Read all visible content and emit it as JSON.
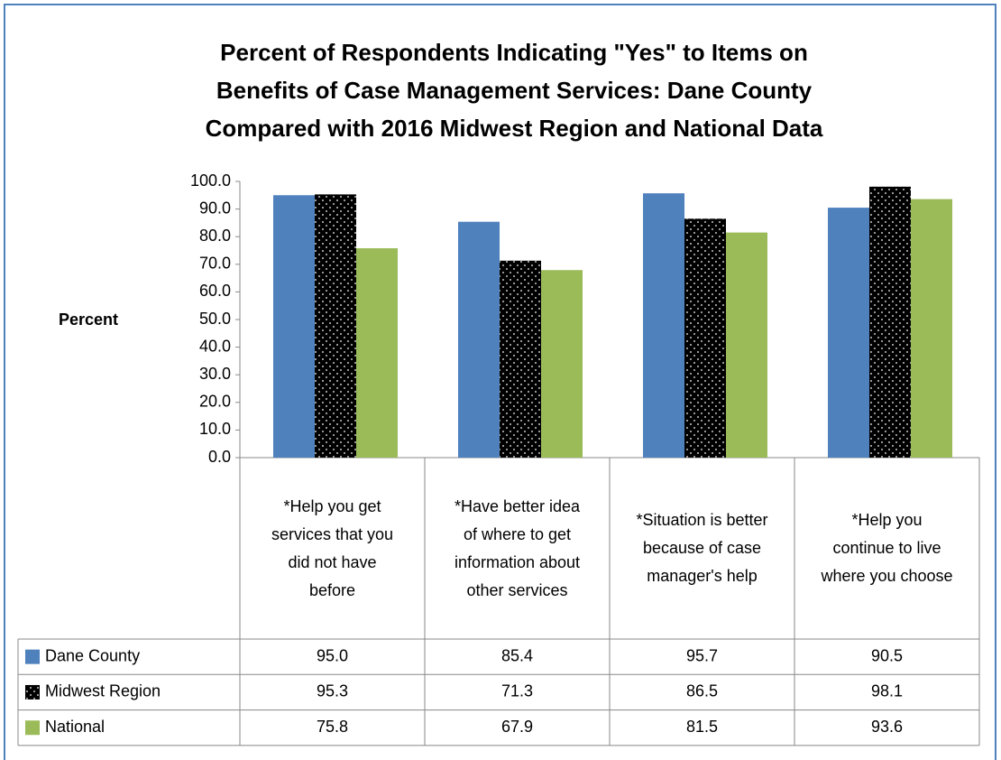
{
  "chart_data": {
    "type": "bar",
    "title": [
      "Percent of Respondents Indicating \"Yes\" to Items on",
      "Benefits of Case Management Services:  Dane County",
      "Compared with 2016 Midwest Region and National Data"
    ],
    "y_label": "Percent",
    "categories": [
      "*Help you get services that you did not have before",
      "*Have better idea of where to get information about other services",
      "*Situation is better because of case manager's help",
      "*Help you continue to live where you choose"
    ],
    "series": [
      {
        "name": "Dane County",
        "color": "#4f81bd",
        "values": [
          95.0,
          85.4,
          95.7,
          90.5
        ],
        "value_labels": [
          "95.0",
          "85.4",
          "95.7",
          "90.5"
        ]
      },
      {
        "name": "Midwest Region",
        "color": "#c00000",
        "pattern": "dots",
        "values": [
          95.3,
          71.3,
          86.5,
          98.1
        ],
        "value_labels": [
          "95.3",
          "71.3",
          "86.5",
          "98.1"
        ]
      },
      {
        "name": "National",
        "color": "#9bbb59",
        "values": [
          75.8,
          67.9,
          81.5,
          93.6
        ],
        "value_labels": [
          "75.8",
          "67.9",
          "81.5",
          "93.6"
        ]
      }
    ],
    "ylim": [
      0,
      100
    ],
    "yticks": [
      {
        "value": 0,
        "label": "0.0"
      },
      {
        "value": 10,
        "label": "10.0"
      },
      {
        "value": 20,
        "label": "20.0"
      },
      {
        "value": 30,
        "label": "30.0"
      },
      {
        "value": 40,
        "label": "40.0"
      },
      {
        "value": 50,
        "label": "50.0"
      },
      {
        "value": 60,
        "label": "60.0"
      },
      {
        "value": 70,
        "label": "70.0"
      },
      {
        "value": 80,
        "label": "80.0"
      },
      {
        "value": 90,
        "label": "90.0"
      },
      {
        "value": 100,
        "label": "100.0"
      }
    ],
    "data_table": true
  }
}
